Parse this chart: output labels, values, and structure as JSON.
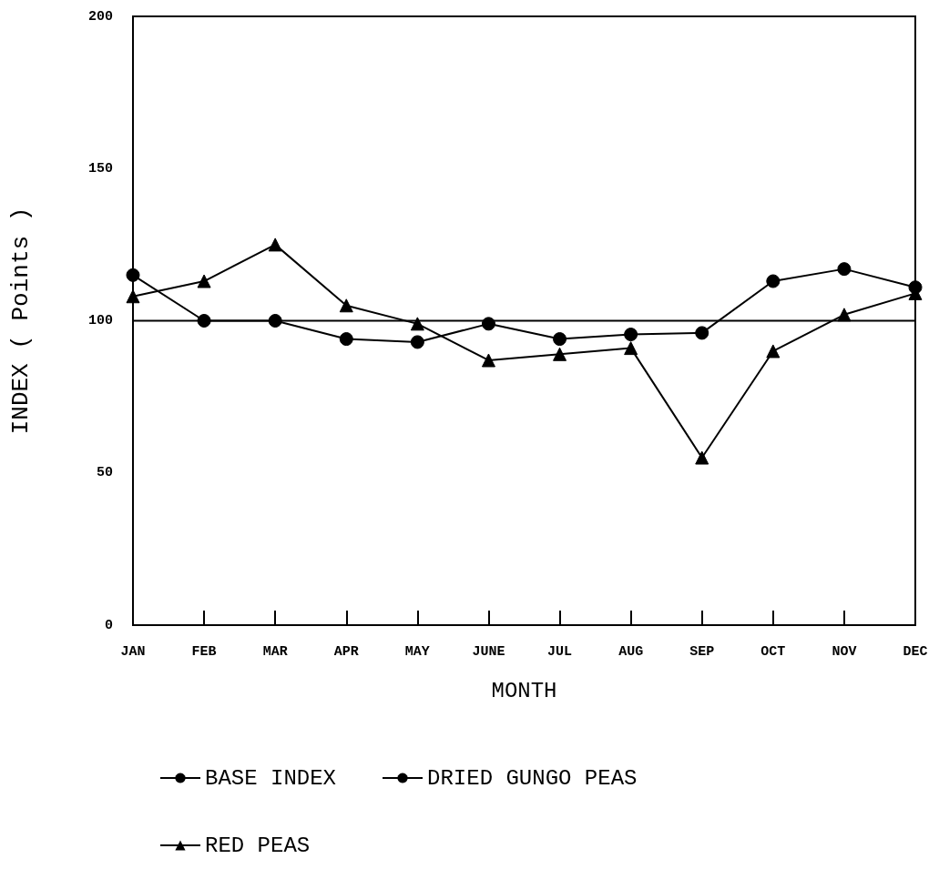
{
  "chart_data": {
    "type": "line",
    "xlabel": "MONTH",
    "ylabel": "INDEX ( Points )",
    "categories": [
      "JAN",
      "FEB",
      "MAR",
      "APR",
      "MAY",
      "JUNE",
      "JUL",
      "AUG",
      "SEP",
      "OCT",
      "NOV",
      "DEC"
    ],
    "series": [
      {
        "name": "BASE INDEX",
        "color": "#000000",
        "marker": "none",
        "values": [
          100,
          100,
          100,
          100,
          100,
          100,
          100,
          100,
          100,
          100,
          100,
          100
        ]
      },
      {
        "name": "DRIED GUNGO PEAS",
        "color": "#000000",
        "marker": "circle",
        "values": [
          115,
          100,
          100,
          94,
          93,
          99,
          94,
          95.5,
          96,
          113,
          117,
          111
        ]
      },
      {
        "name": "RED PEAS",
        "color": "#000000",
        "marker": "triangle",
        "values": [
          108,
          113,
          125,
          105,
          99,
          87,
          89,
          91,
          55,
          90,
          102,
          109
        ]
      }
    ],
    "ylim": [
      0,
      200
    ],
    "yticks": [
      0,
      50,
      100,
      150,
      200
    ],
    "grid": false,
    "legend": "bottom",
    "line_style": "solid"
  }
}
